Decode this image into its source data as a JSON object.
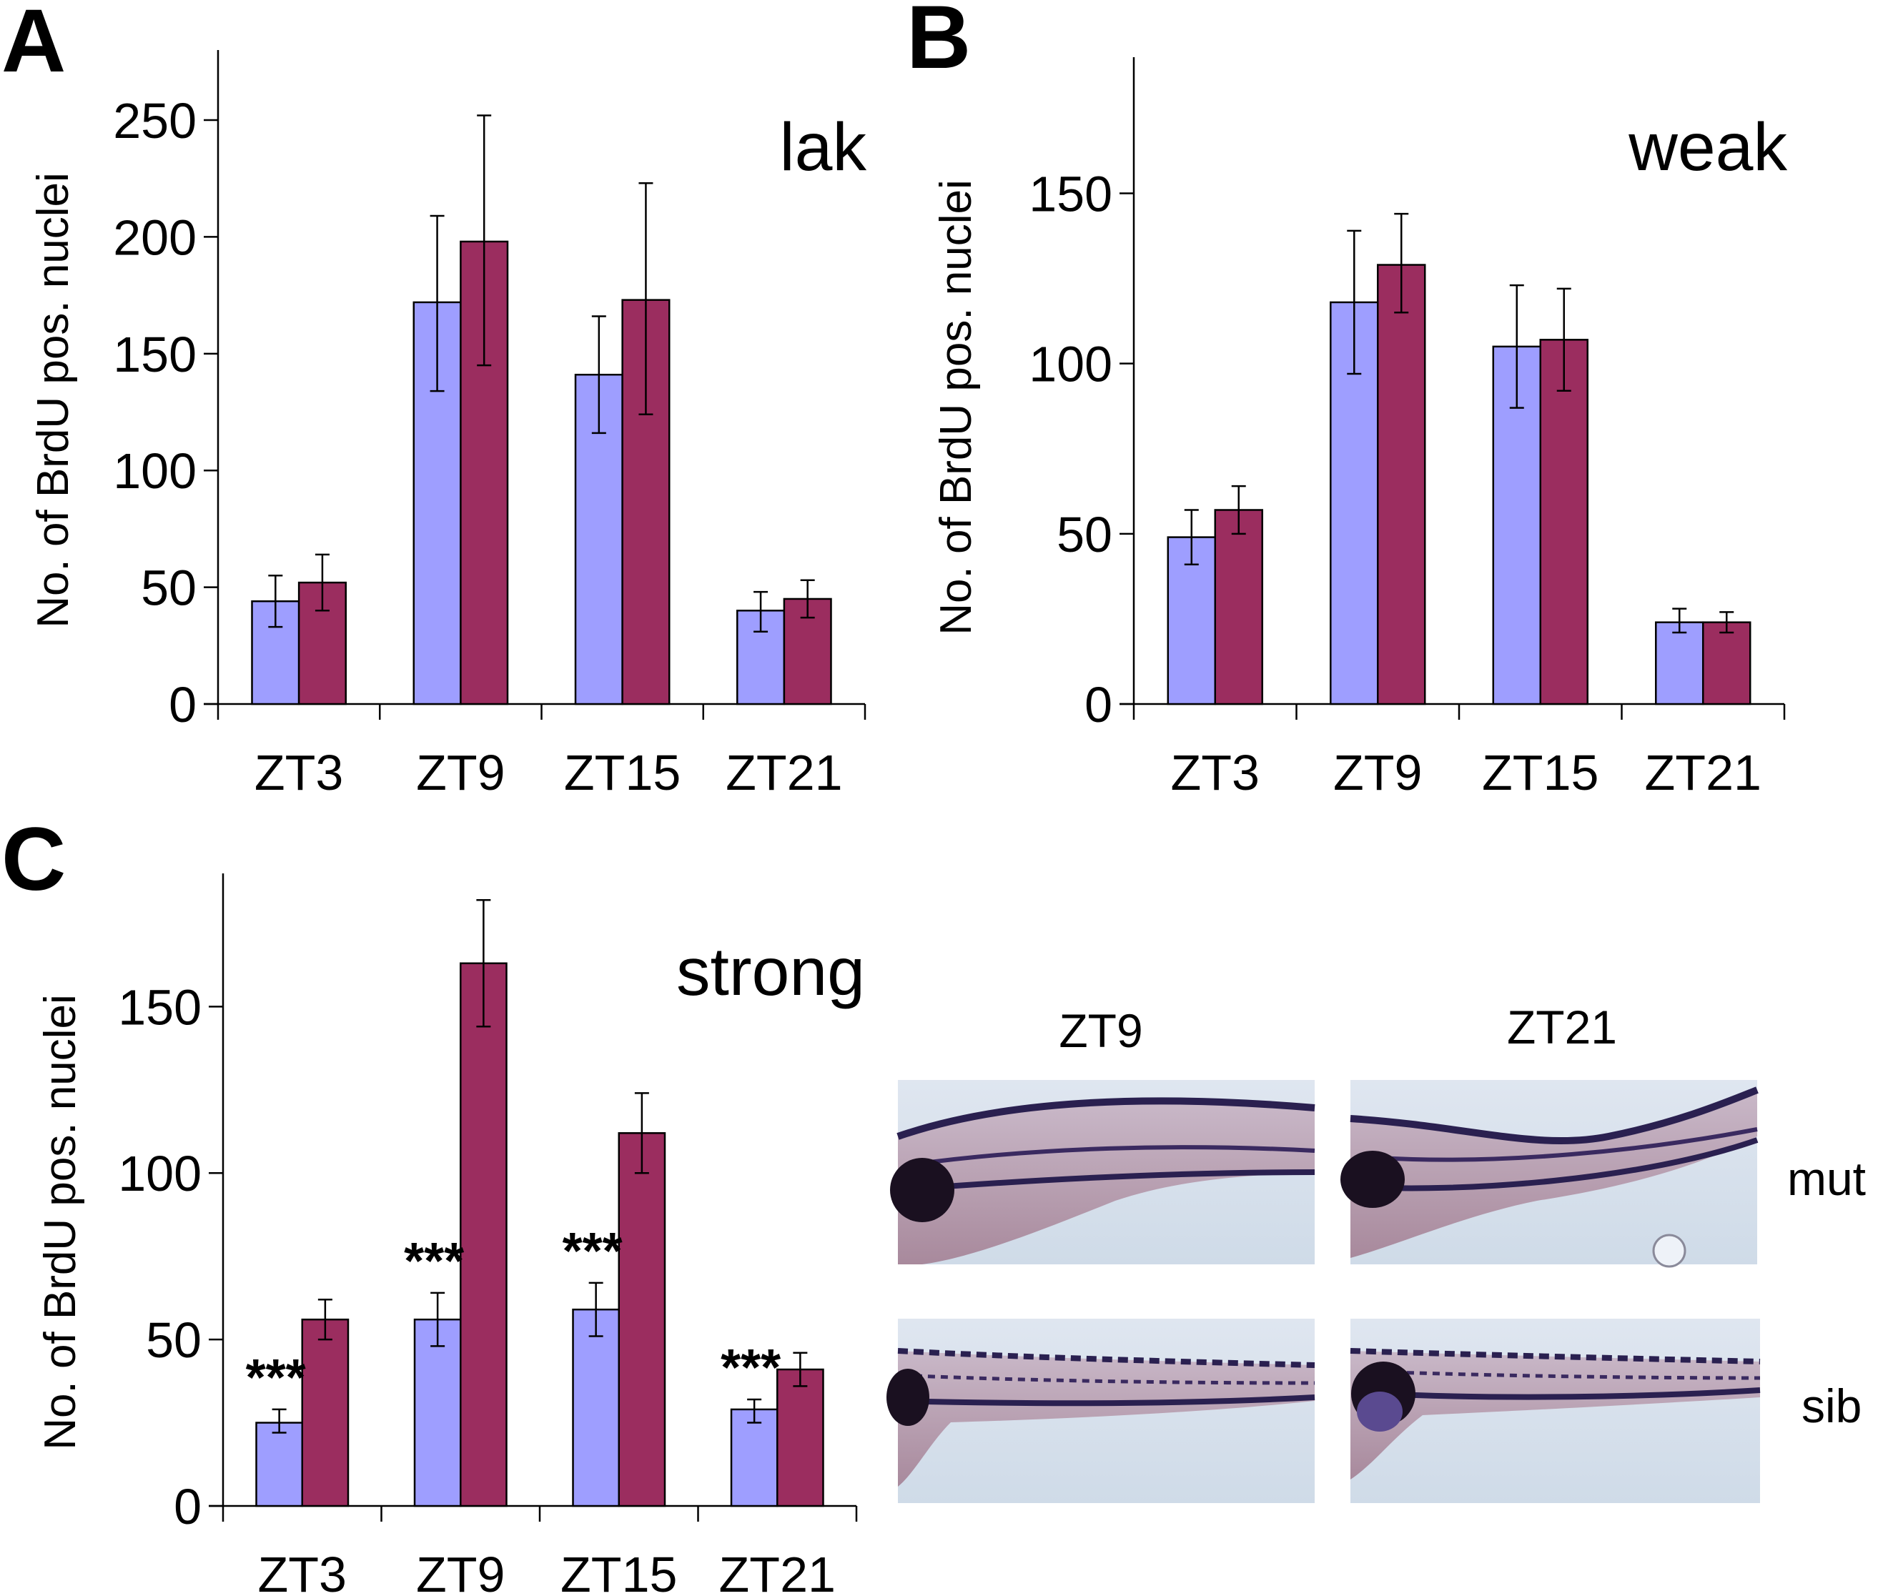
{
  "figure": {
    "series_colors": {
      "series_1": "#9e9eff",
      "series_2": "#9b2d5f"
    },
    "photos": {
      "column_labels": [
        "ZT9",
        "ZT21"
      ],
      "row_labels": [
        "mut",
        "sib"
      ],
      "photo_description": "Lateral views of zebrafish larval trunk/tail with BrdU-stained nuclei"
    }
  },
  "chart_data": [
    {
      "panel": "A",
      "type": "bar",
      "title": "lak",
      "xlabel": "",
      "ylabel": "No. of BrdU pos. nuclei",
      "categories": [
        "ZT3",
        "ZT9",
        "ZT15",
        "ZT21"
      ],
      "ylim": [
        0,
        280
      ],
      "yticks": [
        0,
        50,
        100,
        150,
        200,
        250
      ],
      "grid": false,
      "series": [
        {
          "name": "series 1 (blue)",
          "color": "#9e9eff",
          "values": [
            44,
            172,
            141,
            40
          ],
          "err_low": [
            33,
            134,
            116,
            31
          ],
          "err_high": [
            55,
            209,
            166,
            48
          ]
        },
        {
          "name": "series 2 (maroon)",
          "color": "#9b2d5f",
          "values": [
            52,
            198,
            173,
            45
          ],
          "err_low": [
            40,
            145,
            124,
            37
          ],
          "err_high": [
            64,
            252,
            223,
            53
          ]
        }
      ],
      "annotations": []
    },
    {
      "panel": "B",
      "type": "bar",
      "title": "weak",
      "xlabel": "",
      "ylabel": "No. of BrdU pos. nuclei",
      "categories": [
        "ZT3",
        "ZT9",
        "ZT15",
        "ZT21"
      ],
      "ylim": [
        0,
        190
      ],
      "yticks": [
        0,
        50,
        100,
        150
      ],
      "grid": false,
      "series": [
        {
          "name": "series 1 (blue)",
          "color": "#9e9eff",
          "values": [
            49,
            118,
            105,
            24
          ],
          "err_low": [
            41,
            97,
            87,
            21
          ],
          "err_high": [
            57,
            139,
            123,
            28
          ]
        },
        {
          "name": "series 2 (maroon)",
          "color": "#9b2d5f",
          "values": [
            57,
            129,
            107,
            24
          ],
          "err_low": [
            50,
            115,
            92,
            21
          ],
          "err_high": [
            64,
            144,
            122,
            27
          ]
        }
      ],
      "annotations": []
    },
    {
      "panel": "C",
      "type": "bar",
      "title": "strong",
      "xlabel": "",
      "ylabel": "No. of BrdU pos. nuclei",
      "categories": [
        "ZT3",
        "ZT9",
        "ZT15",
        "ZT21"
      ],
      "ylim": [
        0,
        190
      ],
      "yticks": [
        0,
        50,
        100,
        150
      ],
      "grid": false,
      "series": [
        {
          "name": "series 1 (blue)",
          "color": "#9e9eff",
          "values": [
            25,
            56,
            59,
            29
          ],
          "err_low": [
            22,
            48,
            51,
            25
          ],
          "err_high": [
            29,
            64,
            67,
            32
          ]
        },
        {
          "name": "series 2 (maroon)",
          "color": "#9b2d5f",
          "values": [
            56,
            163,
            112,
            41
          ],
          "err_low": [
            50,
            144,
            100,
            36
          ],
          "err_high": [
            62,
            182,
            124,
            46
          ]
        }
      ],
      "annotations": [
        {
          "category": "ZT3",
          "text": "***"
        },
        {
          "category": "ZT9",
          "text": "***"
        },
        {
          "category": "ZT15",
          "text": "***"
        },
        {
          "category": "ZT21",
          "text": "***"
        }
      ]
    }
  ]
}
